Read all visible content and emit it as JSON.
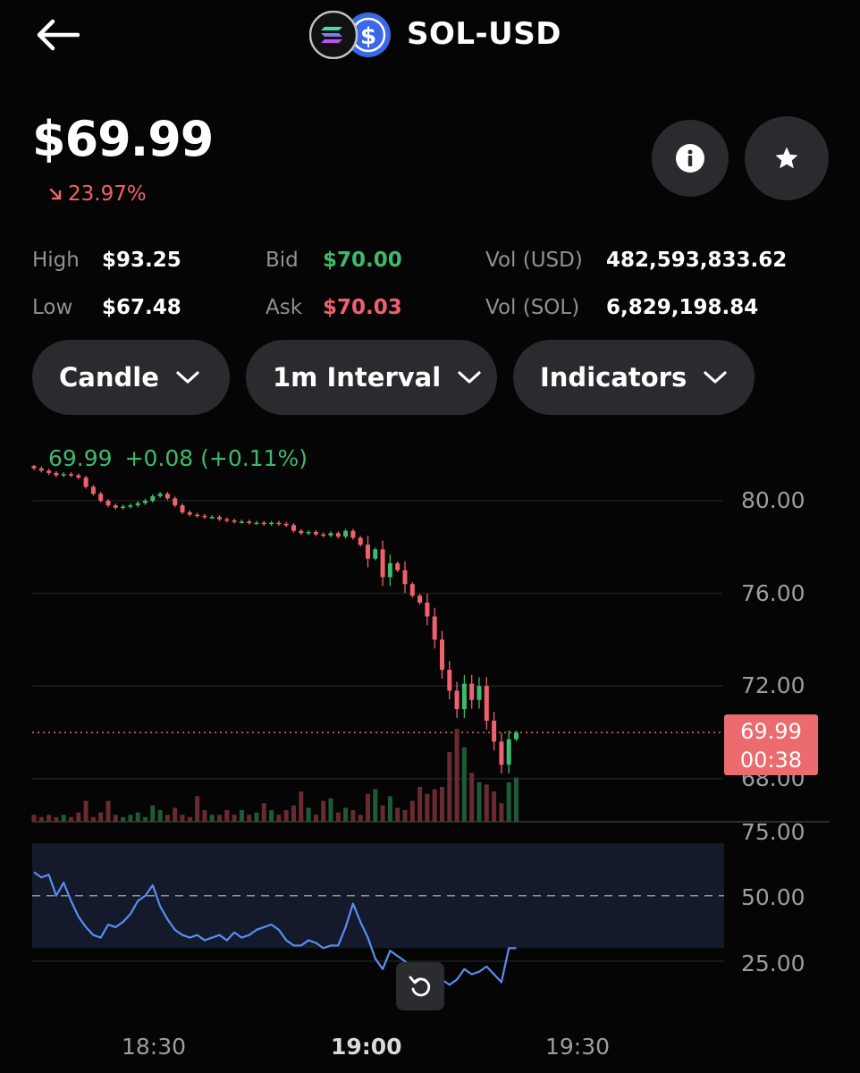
{
  "header": {
    "title": "SOL-USD",
    "back_icon": "arrow-left-icon",
    "base_icon": "solana-icon",
    "quote_icon": "usd-coin-icon"
  },
  "quote": {
    "price": "$69.99",
    "change": "23.97%",
    "change_direction": "down",
    "change_color": "#f0616d"
  },
  "actions": {
    "info_icon": "info-icon",
    "favorite_icon": "star-icon"
  },
  "stats": {
    "high_label": "High",
    "high_value": "$93.25",
    "low_label": "Low",
    "low_value": "$67.48",
    "bid_label": "Bid",
    "bid_value": "$70.00",
    "ask_label": "Ask",
    "ask_value": "$70.03",
    "vol_usd_label": "Vol (USD)",
    "vol_usd_value": "482,593,833.62",
    "vol_sol_label": "Vol (SOL)",
    "vol_sol_value": "6,829,198.84"
  },
  "controls": {
    "chart_type": "Candle",
    "interval": "1m Interval",
    "indicators": "Indicators"
  },
  "ohlc_readout": {
    "close": "69.99",
    "change": "+0.08 (+0.11%)"
  },
  "price_axis": {
    "ticks": [
      "80.00",
      "76.00",
      "72.00",
      "68.00"
    ],
    "current_price": "69.99",
    "countdown": "00:38"
  },
  "rsi_axis": {
    "ticks": [
      "75.00",
      "50.00",
      "25.00"
    ]
  },
  "time_axis": {
    "ticks": [
      "18:30",
      "19:00",
      "19:30"
    ]
  },
  "colors": {
    "up": "#3fb96c",
    "down": "#f0616d",
    "rsi_line": "#5b8def"
  },
  "chart_data": {
    "type": "candlestick",
    "title": "",
    "y_range": [
      67.5,
      81.0
    ],
    "current_price": 69.99,
    "closes": [
      81.4,
      81.3,
      81.2,
      81.1,
      81.15,
      81.1,
      81.0,
      80.6,
      80.3,
      80.0,
      79.8,
      79.7,
      79.75,
      79.8,
      79.9,
      80.0,
      80.2,
      80.3,
      80.1,
      79.8,
      79.5,
      79.4,
      79.35,
      79.3,
      79.3,
      79.2,
      79.15,
      79.1,
      79.1,
      79.05,
      79.05,
      79.0,
      79.05,
      79.0,
      78.95,
      78.7,
      78.6,
      78.65,
      78.55,
      78.5,
      78.6,
      78.45,
      78.7,
      78.4,
      78.1,
      77.5,
      77.9,
      76.7,
      77.3,
      77.0,
      76.4,
      75.9,
      75.6,
      75.0,
      74.0,
      72.7,
      71.8,
      71.0,
      72.1,
      71.4,
      72.0,
      70.5,
      69.6,
      68.6,
      69.7,
      69.99
    ],
    "volume": [
      3,
      2,
      3,
      2,
      3,
      2,
      4,
      9,
      2,
      4,
      9,
      3,
      2,
      3,
      4,
      2,
      7,
      5,
      3,
      6,
      3,
      2,
      11,
      5,
      3,
      3,
      5,
      3,
      5,
      3,
      4,
      8,
      5,
      3,
      5,
      7,
      13,
      6,
      3,
      9,
      10,
      4,
      6,
      5,
      3,
      12,
      14,
      7,
      11,
      6,
      5,
      9,
      15,
      12,
      14,
      15,
      30,
      40,
      32,
      21,
      17,
      16,
      13,
      8,
      17,
      19
    ],
    "rsi": [
      59,
      57,
      58,
      50,
      55,
      48,
      42,
      38,
      35,
      34,
      39,
      38,
      40,
      43,
      48,
      50,
      54,
      46,
      41,
      37,
      35,
      34,
      35,
      33,
      34,
      35,
      33,
      36,
      34,
      35,
      37,
      38,
      39,
      37,
      33,
      31,
      31,
      33,
      32,
      30,
      31,
      31,
      38,
      47,
      40,
      34,
      26,
      22,
      29,
      27,
      25,
      21,
      20,
      23,
      21,
      18,
      16,
      18,
      22,
      20,
      21,
      23,
      20,
      17,
      30,
      30
    ],
    "rsi_range": [
      0,
      90
    ],
    "rsi_band": [
      30,
      70
    ],
    "rsi_mid": 50,
    "x_ticks": [
      "18:30",
      "19:00",
      "19:30"
    ]
  }
}
